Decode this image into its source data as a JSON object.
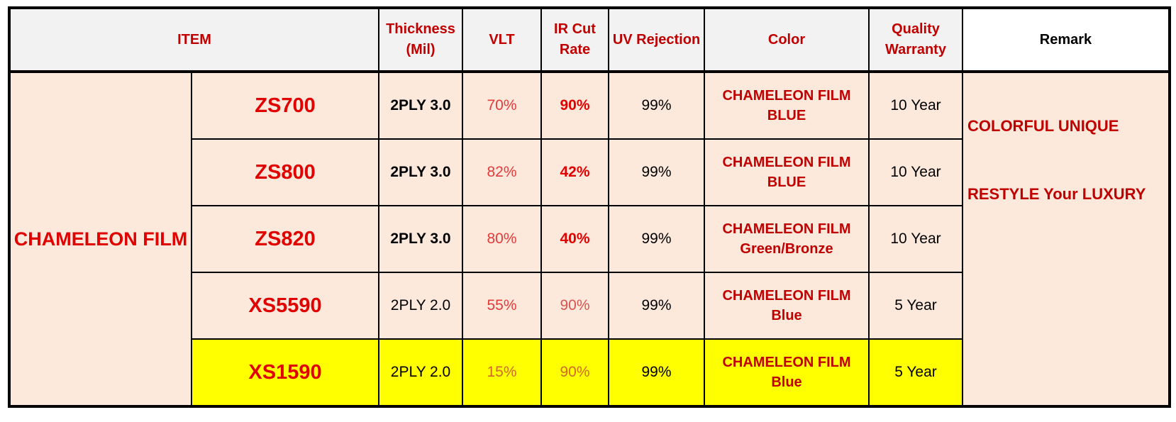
{
  "header": [
    "ITEM",
    "Thickness (Mil)",
    "VLT",
    "IR Cut Rate",
    "UV Rejection",
    "Color",
    "Quality Warranty",
    "Remark"
  ],
  "category": "CHAMELEON FILM",
  "remark": [
    "COLORFUL UNIQUE",
    "RESTYLE Your LUXURY"
  ],
  "rows": [
    {
      "model": "ZS700",
      "thickness": "2PLY 3.0",
      "vlt": "70%",
      "ir": "90%",
      "uv": "99%",
      "color": [
        "CHAMELEON FILM",
        "BLUE"
      ],
      "warranty": "10 Year"
    },
    {
      "model": "ZS800",
      "thickness": "2PLY 3.0",
      "vlt": "82%",
      "ir": "42%",
      "uv": "99%",
      "color": [
        "CHAMELEON FILM",
        "BLUE"
      ],
      "warranty": "10 Year"
    },
    {
      "model": "ZS820",
      "thickness": "2PLY 3.0",
      "vlt": "80%",
      "ir": "40%",
      "uv": "99%",
      "color": [
        "CHAMELEON FILM",
        "Green/Bronze"
      ],
      "warranty": "10 Year"
    },
    {
      "model": "XS5590",
      "thickness": "2PLY 2.0",
      "vlt": "55%",
      "ir": "90%",
      "uv": "99%",
      "color": [
        "CHAMELEON FILM",
        "Blue"
      ],
      "warranty": "5 Year"
    },
    {
      "model": "XS1590",
      "thickness": "2PLY 2.0",
      "vlt": "15%",
      "ir": "90%",
      "uv": "99%",
      "color": [
        "CHAMELEON FILM",
        "Blue"
      ],
      "warranty": "5 Year"
    }
  ]
}
